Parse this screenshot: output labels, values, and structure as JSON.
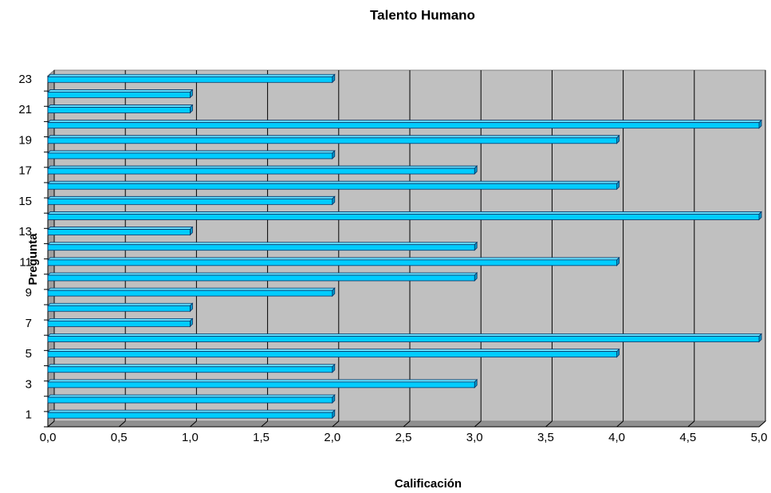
{
  "chart_data": {
    "type": "bar",
    "orientation": "horizontal",
    "title": "Talento Humano",
    "x_label": "Calificación",
    "y_label": "Pregunta",
    "categories": [
      "1",
      null,
      "3",
      null,
      "5",
      null,
      "7",
      null,
      "9",
      null,
      "11",
      null,
      "13",
      null,
      "15",
      null,
      "17",
      null,
      "19",
      null,
      "21",
      null,
      "23"
    ],
    "values": [
      2,
      2,
      3,
      2,
      4,
      5,
      1,
      1,
      2,
      3,
      4,
      3,
      1,
      5,
      2,
      4,
      3,
      2,
      4,
      5,
      1,
      1,
      2
    ],
    "color": "#00ccff",
    "xlim": [
      0,
      5
    ],
    "xticks": [
      {
        "value": 0,
        "label": "0,0"
      },
      {
        "value": 0.5,
        "label": "0,5"
      },
      {
        "value": 1,
        "label": "1,0"
      },
      {
        "value": 1.5,
        "label": "1,5"
      },
      {
        "value": 2,
        "label": "2,0"
      },
      {
        "value": 2.5,
        "label": "2,5"
      },
      {
        "value": 3,
        "label": "3,0"
      },
      {
        "value": 3.5,
        "label": "3,5"
      },
      {
        "value": 4,
        "label": "4,0"
      },
      {
        "value": 4.5,
        "label": "4,5"
      },
      {
        "value": 5,
        "label": "5,0"
      }
    ],
    "grid": true
  }
}
